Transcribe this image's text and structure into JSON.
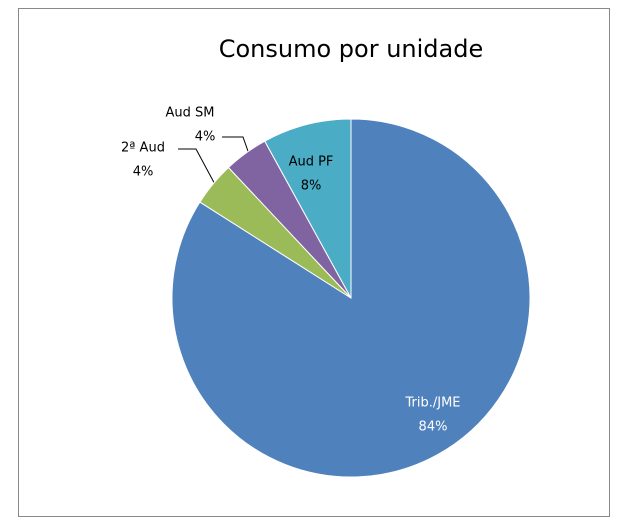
{
  "chart_data": {
    "type": "pie",
    "title": "Consumo por unidade",
    "categories": [
      "Trib./JME",
      "2ª Aud",
      "Aud SM",
      "Aud PF"
    ],
    "values": [
      84,
      4,
      4,
      8
    ],
    "value_labels": [
      "84%",
      "4%",
      "4%",
      "8%"
    ],
    "colors": [
      "#4f81bd",
      "#9bbb59",
      "#8064a2",
      "#4bacc6"
    ]
  }
}
